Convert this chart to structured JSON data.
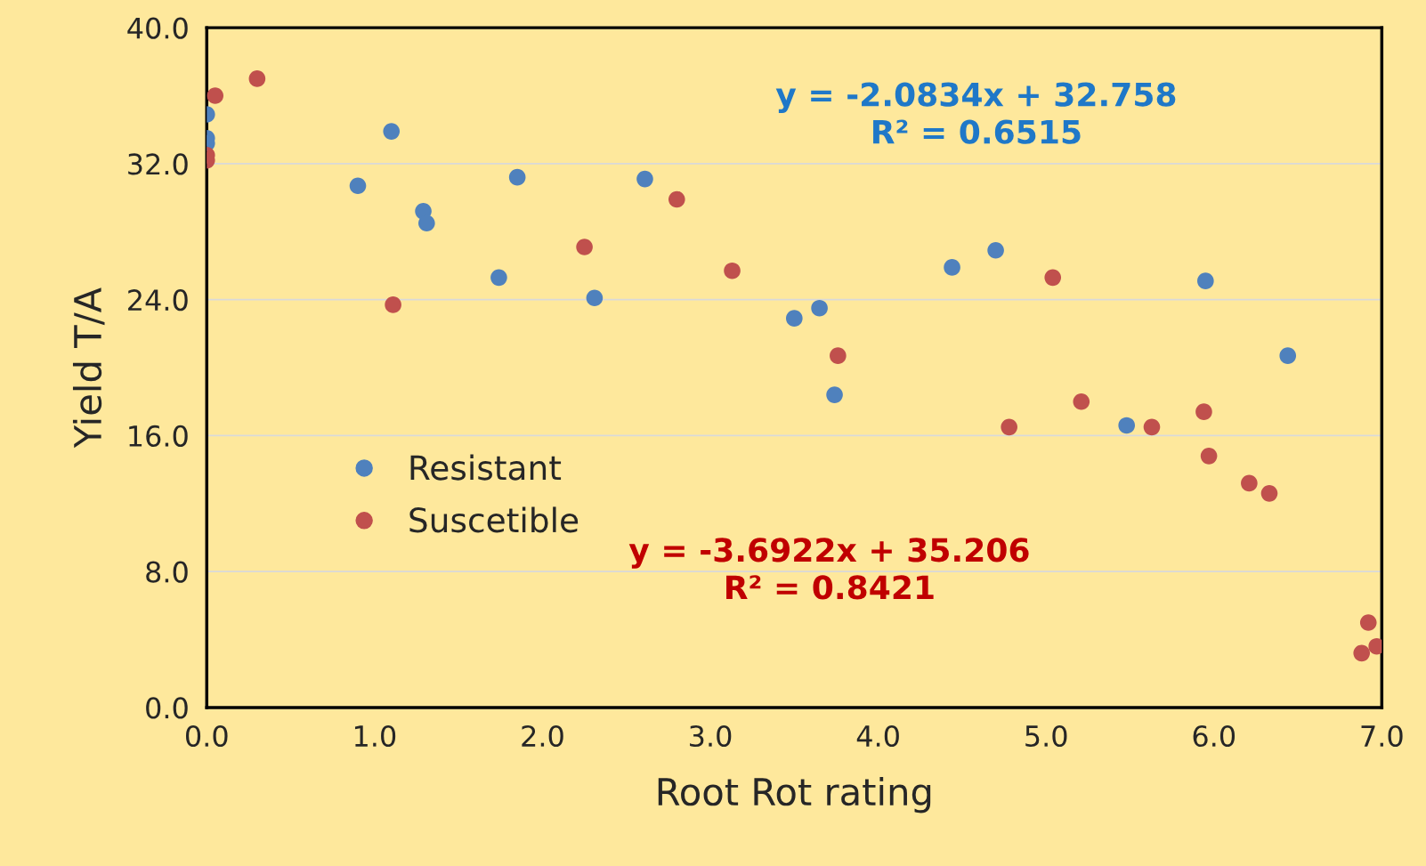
{
  "chart_data": {
    "type": "scatter",
    "xlabel": "Root Rot rating",
    "ylabel": "Yield T/A",
    "xlim": [
      0,
      7
    ],
    "xticks": [
      {
        "value": 0,
        "label": "0.0"
      },
      {
        "value": 1,
        "label": "1.0"
      },
      {
        "value": 2,
        "label": "2.0"
      },
      {
        "value": 3,
        "label": "3.0"
      },
      {
        "value": 4,
        "label": "4.0"
      },
      {
        "value": 5,
        "label": "5.0"
      },
      {
        "value": 6,
        "label": "6.0"
      },
      {
        "value": 7,
        "label": "7.0"
      }
    ],
    "ylim": [
      0,
      40
    ],
    "yticks": [
      {
        "value": 0,
        "label": "0.0"
      },
      {
        "value": 8,
        "label": "8.0"
      },
      {
        "value": 16,
        "label": "16.0"
      },
      {
        "value": 24,
        "label": "24.0"
      },
      {
        "value": 32,
        "label": "32.0"
      },
      {
        "value": 40,
        "label": "40.0"
      }
    ],
    "grid": "y",
    "legend": "left",
    "marker": "circle",
    "series": [
      {
        "name": "Resistant",
        "color": "#4f81bd",
        "x": [
          0,
          0,
          0,
          1.1,
          0.9,
          1.85,
          1.29,
          1.31,
          1.74,
          2.31,
          2.61,
          3.5,
          3.65,
          3.74,
          4.44,
          4.7,
          5.48,
          5.95,
          6.44
        ],
        "values": [
          34.9,
          33.5,
          33.2,
          33.9,
          30.7,
          31.2,
          29.2,
          28.5,
          25.3,
          24.1,
          31.1,
          22.9,
          23.5,
          18.4,
          25.9,
          26.9,
          16.6,
          25.1,
          20.7
        ]
      },
      {
        "name": "Suscetible",
        "color": "#c0504d",
        "x": [
          0.05,
          0.3,
          0,
          0,
          1.11,
          2.25,
          2.8,
          3.13,
          3.76,
          4.78,
          5.04,
          5.21,
          5.63,
          5.94,
          5.97,
          6.21,
          6.33,
          6.88,
          6.92,
          6.97
        ],
        "values": [
          36.0,
          37.0,
          32.5,
          32.2,
          23.7,
          27.1,
          29.9,
          25.7,
          20.7,
          16.5,
          25.3,
          18.0,
          16.5,
          17.4,
          14.8,
          13.2,
          12.6,
          3.2,
          5.0,
          3.6
        ]
      }
    ],
    "annotations": [
      "y = -2.0834x + 32.758\nR² = 0.6515",
      "y = -3.6922x + 35.206\nR² = 0.8421"
    ]
  }
}
